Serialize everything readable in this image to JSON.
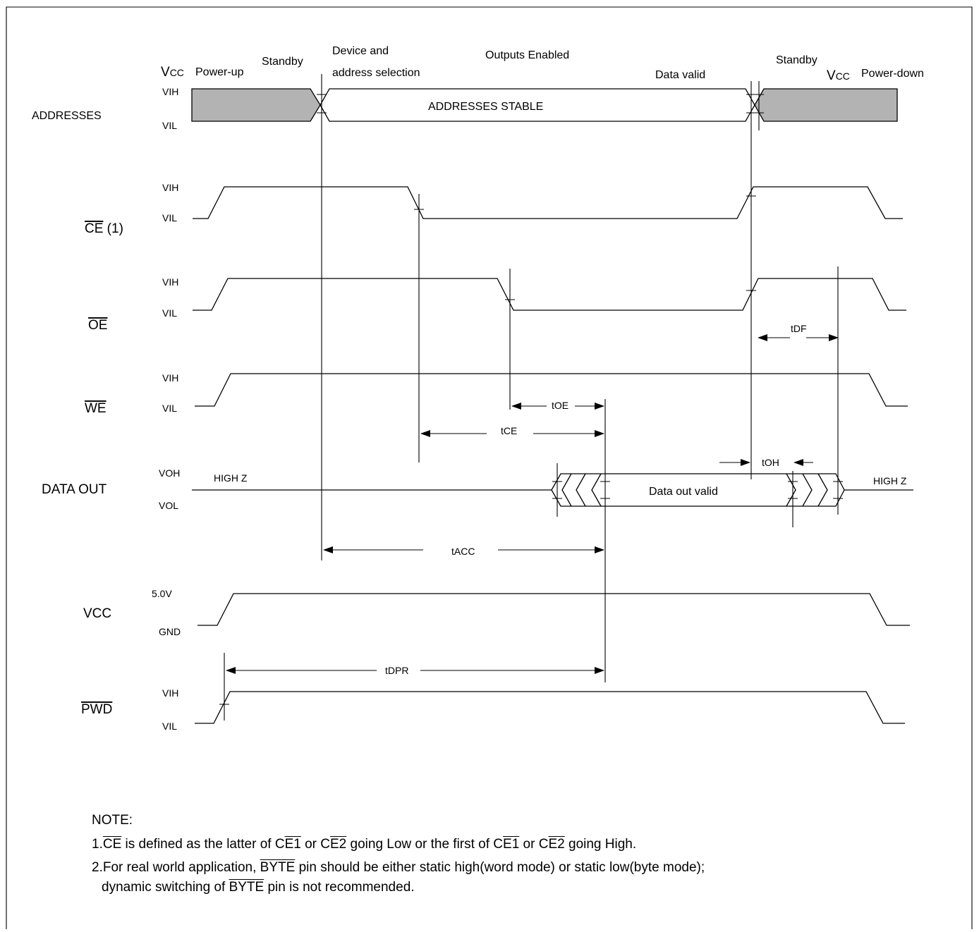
{
  "signals": [
    {
      "id": "addresses",
      "label": "ADDRESSES",
      "overline": "",
      "suffix": "",
      "hi": "VIH",
      "lo": "VIL"
    },
    {
      "id": "ce",
      "label": "",
      "overline": "CE",
      "suffix": " (1)",
      "hi": "VIH",
      "lo": "VIL"
    },
    {
      "id": "oe",
      "label": "",
      "overline": "OE",
      "suffix": "",
      "hi": "VIH",
      "lo": "VIL"
    },
    {
      "id": "we",
      "label": "",
      "overline": "WE",
      "suffix": "",
      "hi": "VIH",
      "lo": "VIL"
    },
    {
      "id": "data-out",
      "label": "DATA OUT",
      "overline": "",
      "suffix": "",
      "hi": "VOH",
      "lo": "VOL"
    },
    {
      "id": "vcc",
      "label": "VCC",
      "overline": "",
      "suffix": "",
      "hi": "5.0V",
      "lo": "GND"
    },
    {
      "id": "pwd",
      "label": "",
      "overline": "PWD",
      "suffix": "",
      "hi": "VIH",
      "lo": "VIL"
    }
  ],
  "phases": {
    "vcc_up_prefix": "V",
    "vcc_up_sub": "CC",
    "power_up": "Power-up",
    "standby_1": "Standby",
    "device_line1": "Device and",
    "device_line2": "address selection",
    "outputs_enabled": "Outputs Enabled",
    "data_valid": "Data valid",
    "standby_2": "Standby",
    "vcc_down_prefix": "V",
    "vcc_down_sub": "CC",
    "power_down": "Power-down"
  },
  "inner_labels": {
    "addresses_stable": "ADDRESSES STABLE",
    "data_out_valid": "Data out valid",
    "high_z_left": "HIGH Z",
    "high_z_right": "HIGH Z"
  },
  "timing_params": {
    "tdf": "tDF",
    "toe": "tOE",
    "tce": "tCE",
    "toh": "tOH",
    "tacc": "tACC",
    "tdpr": "tDPR"
  },
  "notes": {
    "heading": "NOTE:",
    "n1": {
      "a": "1.",
      "b": "CE",
      "c": " is defined as the latter of C",
      "d": "E1",
      "e": " or C",
      "f": "E2",
      "g": " going Low or the first of C",
      "h": "E1",
      "i": " or C",
      "j": "E2",
      "k": " going High."
    },
    "n2": {
      "a": "2.For  real world application, ",
      "b": "BYTE",
      "c": " pin should be either static high(word mode) or static low(byte mode);"
    },
    "n3": {
      "a": "dynamic switching of ",
      "b": "BYTE",
      "c": " pin is not recommended."
    }
  }
}
